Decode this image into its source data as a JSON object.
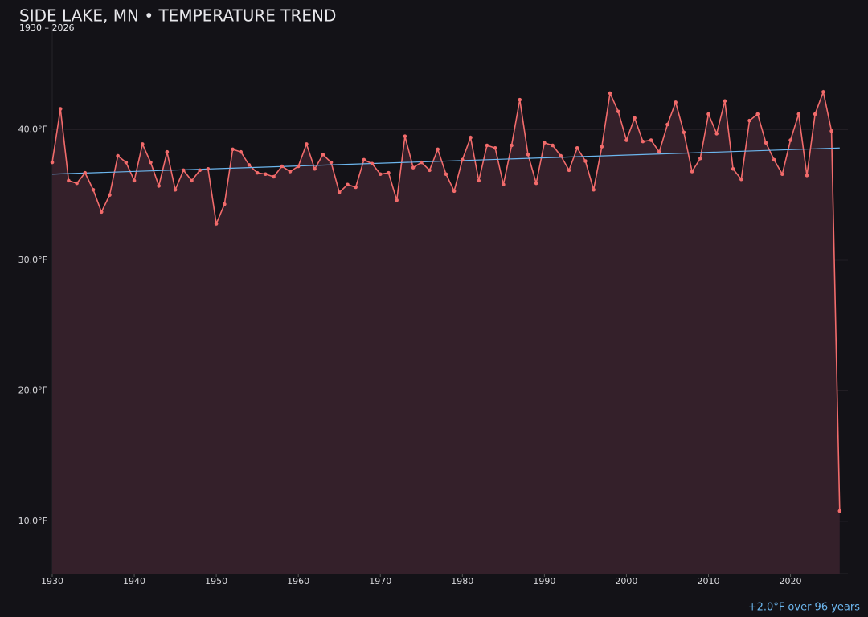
{
  "chart_data": {
    "type": "line",
    "title": "SIDE LAKE, MN • TEMPERATURE TREND",
    "subtitle": "1930 – 2026",
    "annotation": "+2.0°F over 96 years",
    "x": [
      1930,
      1931,
      1932,
      1933,
      1934,
      1935,
      1936,
      1937,
      1938,
      1939,
      1940,
      1941,
      1942,
      1943,
      1944,
      1945,
      1946,
      1947,
      1948,
      1949,
      1950,
      1951,
      1952,
      1953,
      1954,
      1955,
      1956,
      1957,
      1958,
      1959,
      1960,
      1961,
      1962,
      1963,
      1964,
      1965,
      1966,
      1967,
      1968,
      1969,
      1970,
      1971,
      1972,
      1973,
      1974,
      1975,
      1976,
      1977,
      1978,
      1979,
      1980,
      1981,
      1982,
      1983,
      1984,
      1985,
      1986,
      1987,
      1988,
      1989,
      1990,
      1991,
      1992,
      1993,
      1994,
      1995,
      1996,
      1997,
      1998,
      1999,
      2000,
      2001,
      2002,
      2003,
      2004,
      2005,
      2006,
      2007,
      2008,
      2009,
      2010,
      2011,
      2012,
      2013,
      2014,
      2015,
      2016,
      2017,
      2018,
      2019,
      2020,
      2021,
      2022,
      2023,
      2024,
      2025,
      2026
    ],
    "series": [
      {
        "color": "#f26b6b",
        "fill": "#34202a",
        "values": [
          37.5,
          41.6,
          36.1,
          35.9,
          36.7,
          35.4,
          33.7,
          35.0,
          38.0,
          37.5,
          36.1,
          38.9,
          37.5,
          35.7,
          38.3,
          35.4,
          36.9,
          36.1,
          36.9,
          37.0,
          32.8,
          34.3,
          38.5,
          38.3,
          37.3,
          36.7,
          36.6,
          36.4,
          37.2,
          36.8,
          37.2,
          38.9,
          37.0,
          38.1,
          37.5,
          35.2,
          35.8,
          35.6,
          37.7,
          37.4,
          36.6,
          36.7,
          34.6,
          39.5,
          37.1,
          37.5,
          36.9,
          38.5,
          36.6,
          35.3,
          37.7,
          39.4,
          36.1,
          38.8,
          38.6,
          35.8,
          38.8,
          42.3,
          38.1,
          35.9,
          39.0,
          38.8,
          38.0,
          36.9,
          38.6,
          37.6,
          35.4,
          38.7,
          42.8,
          41.4,
          39.2,
          40.9,
          39.1,
          39.2,
          38.3,
          40.4,
          42.1,
          39.8,
          36.8,
          37.8,
          41.2,
          39.7,
          42.2,
          37.0,
          36.2,
          40.7,
          41.2,
          39.0,
          37.7,
          36.6,
          39.2,
          41.2,
          36.5,
          41.2,
          42.9,
          39.9,
          10.8
        ]
      }
    ],
    "trend": {
      "color": "#6cb6ee",
      "x": [
        1930,
        2026
      ],
      "values": [
        36.6,
        38.6
      ]
    },
    "xlim": [
      1930,
      2027
    ],
    "ylim": [
      6,
      48
    ],
    "xticks": [
      1930,
      1940,
      1950,
      1960,
      1970,
      1980,
      1990,
      2000,
      2010,
      2020
    ],
    "yticks": [
      {
        "value": 10,
        "label": "10.0°F"
      },
      {
        "value": 20,
        "label": "20.0°F"
      },
      {
        "value": 30,
        "label": "30.0°F"
      },
      {
        "value": 40,
        "label": "40.0°F"
      }
    ],
    "grid": true
  }
}
